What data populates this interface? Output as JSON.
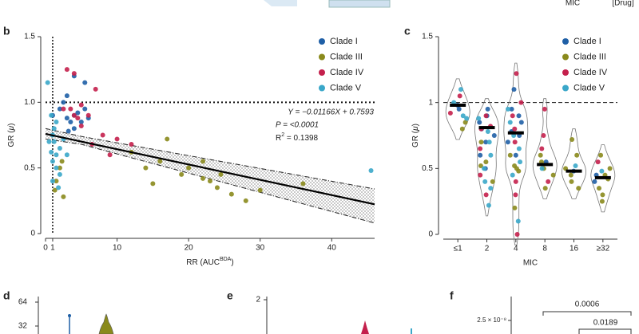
{
  "top_strip": {
    "labels": [
      "MIC",
      "[Drug]"
    ]
  },
  "chart_data": [
    {
      "type": "scatter",
      "panel_label": "b",
      "xlabel": {
        "text": "RR (AUC",
        "sup": "BDA",
        "end": ")"
      },
      "ylabel": {
        "text": "GR (",
        "italic": "μ",
        "end": ")"
      },
      "xlim": [
        0,
        46
      ],
      "xticks": [
        0,
        1,
        10,
        20,
        30,
        40
      ],
      "ylim": [
        0,
        1.5
      ],
      "yticks": [
        0,
        0.5,
        {
          "value": 1,
          "label": "1.0"
        },
        1.5
      ],
      "hline": 1,
      "vline": 1,
      "legend": "top right",
      "regression": {
        "slope": -0.01166,
        "intercept": 0.7593,
        "ci_x": [
          0,
          5,
          46
        ],
        "ci_upper": [
          0.8,
          0.74,
          0.34
        ],
        "ci_lower": [
          0.72,
          0.68,
          0.08
        ]
      },
      "annotations": [
        {
          "text": "Y = −0.01166X + 0.7593"
        },
        {
          "text": "P = <0.0001"
        },
        {
          "text": "R",
          "sup": "2",
          "end": " = 0.1398"
        }
      ],
      "series": [
        {
          "name": "Clade I",
          "color": "#1f5fa6",
          "x": [
            1,
            2,
            3,
            3.5,
            4,
            4.5,
            5,
            3,
            4,
            5.5,
            2.5,
            6,
            4,
            5.5,
            3.2
          ],
          "values": [
            0.9,
            0.95,
            0.88,
            0.85,
            0.9,
            0.92,
            0.85,
            1.05,
            0.8,
            0.95,
            1.0,
            0.88,
            1.2,
            1.15,
            0.78
          ]
        },
        {
          "name": "Clade III",
          "color": "#8a8a1c",
          "x": [
            12,
            14,
            16,
            17,
            20,
            22,
            24,
            24.5,
            26,
            28,
            30,
            22,
            23,
            19,
            36,
            15,
            2,
            2.3,
            1.5,
            2.5,
            1.3
          ],
          "values": [
            0.62,
            0.5,
            0.55,
            0.72,
            0.5,
            0.42,
            0.35,
            0.45,
            0.3,
            0.25,
            0.33,
            0.55,
            0.4,
            0.45,
            0.38,
            0.38,
            0.5,
            0.55,
            0.4,
            0.28,
            0.33
          ]
        },
        {
          "name": "Clade IV",
          "color": "#c4204c",
          "x": [
            3,
            4,
            5,
            6,
            7,
            8,
            4,
            5,
            3.5,
            10,
            12,
            6.5,
            2.5,
            4.5,
            9
          ],
          "values": [
            1.25,
            1.22,
            0.98,
            0.9,
            1.1,
            0.75,
            0.9,
            0.82,
            0.95,
            0.72,
            0.68,
            0.68,
            0.95,
            0.88,
            0.6
          ]
        },
        {
          "name": "Clade V",
          "color": "#3aa7c9",
          "x": [
            0.3,
            0.8,
            1,
            1.2,
            1.5,
            2,
            1,
            1.5,
            2,
            1,
            0.8,
            1.2,
            2.5,
            3,
            1.8,
            45.5,
            0.5,
            1.5
          ],
          "values": [
            1.15,
            0.9,
            0.75,
            0.7,
            0.6,
            0.65,
            0.55,
            0.5,
            0.45,
            0.4,
            0.62,
            0.8,
            0.72,
            0.6,
            0.35,
            0.48,
            0.7,
            0.85
          ]
        }
      ]
    },
    {
      "type": "violin",
      "panel_label": "c",
      "xlabel": "MIC",
      "ylabel": {
        "text": "GR (",
        "italic": "μ",
        "end": ")"
      },
      "categories": [
        "≤1",
        "2",
        "4",
        "8",
        "16",
        "≥32"
      ],
      "ylim": [
        0,
        1.5
      ],
      "yticks": [
        0,
        0.5,
        1,
        1.5
      ],
      "hline": 1,
      "legend": "top right",
      "medians": [
        0.98,
        0.81,
        0.77,
        0.53,
        0.48,
        0.43
      ],
      "series": [
        {
          "name": "Clade I",
          "color": "#1f5fa6",
          "category_index": [
            0,
            0,
            1,
            1,
            1,
            1,
            1,
            1,
            1,
            1,
            2,
            2,
            2,
            2,
            2,
            2,
            2,
            2,
            3,
            4,
            5,
            5
          ],
          "values": [
            0.98,
            0.95,
            0.85,
            0.8,
            0.7,
            0.9,
            0.6,
            0.75,
            0.95,
            0.5,
            0.78,
            0.85,
            0.9,
            0.7,
            0.6,
            0.95,
            0.75,
            1.1,
            0.55,
            0.48,
            0.45,
            0.4
          ]
        },
        {
          "name": "Clade III",
          "color": "#8a8a1c",
          "category_index": [
            0,
            0,
            1,
            1,
            1,
            1,
            2,
            2,
            2,
            2,
            2,
            3,
            3,
            3,
            3,
            3,
            4,
            4,
            4,
            4,
            4,
            4,
            5,
            5,
            5,
            5,
            5,
            5,
            5
          ],
          "values": [
            0.8,
            0.85,
            0.52,
            0.55,
            0.4,
            0.7,
            0.52,
            0.5,
            0.48,
            0.2,
            0.6,
            0.45,
            0.5,
            0.6,
            0.35,
            0.55,
            0.72,
            0.6,
            0.45,
            0.4,
            0.5,
            0.35,
            0.6,
            0.5,
            0.3,
            0.35,
            0.45,
            0.25,
            0.42
          ]
        },
        {
          "name": "Clade IV",
          "color": "#c4204c",
          "category_index": [
            0,
            0,
            1,
            1,
            1,
            1,
            1,
            1,
            2,
            2,
            2,
            2,
            2,
            2,
            2,
            2,
            3,
            3,
            3,
            3,
            5
          ],
          "values": [
            1.05,
            0.92,
            0.8,
            0.9,
            0.65,
            0.45,
            0.3,
            0.82,
            1.22,
            1.0,
            0.9,
            0.8,
            0.4,
            0.3,
            0.0,
            0.7,
            0.95,
            0.75,
            0.65,
            0.4,
            0.55
          ]
        },
        {
          "name": "Clade V",
          "color": "#3aa7c9",
          "category_index": [
            0,
            0,
            0,
            0,
            1,
            1,
            1,
            1,
            1,
            1,
            1,
            1,
            2,
            2,
            2,
            2,
            2,
            2,
            2,
            3,
            4,
            5
          ],
          "values": [
            1.0,
            0.9,
            1.1,
            0.88,
            0.22,
            0.35,
            0.6,
            0.7,
            0.78,
            0.88,
            0.5,
            0.4,
            0.85,
            0.75,
            0.65,
            0.55,
            0.45,
            0.1,
            0.95,
            0.5,
            0.52,
            0.48
          ]
        }
      ]
    }
  ],
  "partial_panels": [
    {
      "panel_label": "d",
      "yticks": [
        "64",
        "32"
      ]
    },
    {
      "panel_label": "e",
      "yticks": [
        "2"
      ]
    },
    {
      "panel_label": "f",
      "yticks": [
        "2.5 × 10⁻⁸"
      ],
      "p_values": [
        "0.0006",
        "0.0189"
      ]
    }
  ]
}
